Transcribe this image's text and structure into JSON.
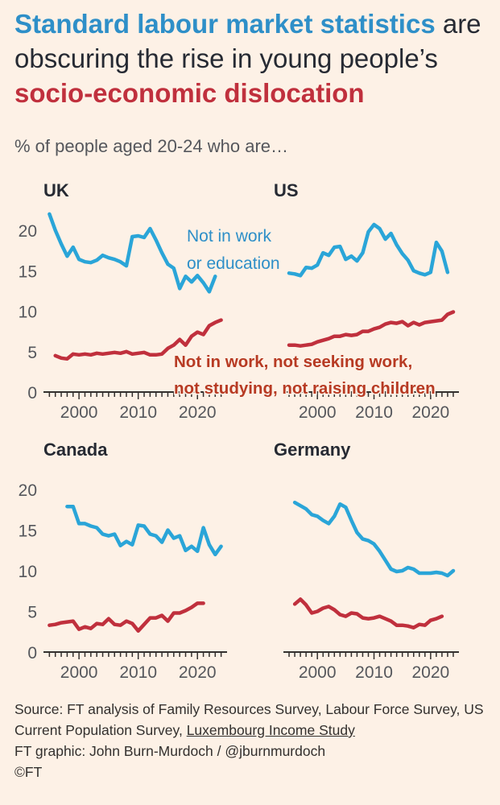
{
  "title": {
    "part1": "Standard labour market statistics",
    "part2": " are obscuring the rise in young people’s ",
    "part3": "socio-economic dislocation"
  },
  "subtitle": "% of people aged 20-24 who are…",
  "colors": {
    "blue": "#2aa5d8",
    "red": "#c0303d",
    "annotation_blue": "#2e8fc8",
    "annotation_red": "#b73a23",
    "axis": "#33302e",
    "text": "#262a33"
  },
  "chart_data": [
    {
      "type": "line",
      "title": "UK",
      "xlim": [
        1994,
        2025
      ],
      "ylim": [
        0,
        22
      ],
      "yticks": [
        "0",
        "5",
        "10",
        "15",
        "20"
      ],
      "xticks": [
        "2000",
        "2010",
        "2020"
      ],
      "series": [
        {
          "name": "Not in work or education",
          "x": [
            1995,
            1996,
            1997,
            1998,
            1999,
            2000,
            2001,
            2002,
            2003,
            2004,
            2005,
            2006,
            2007,
            2008,
            2009,
            2010,
            2011,
            2012,
            2013,
            2014,
            2015,
            2016,
            2017,
            2018,
            2019,
            2020,
            2021,
            2022,
            2023
          ],
          "values": [
            22,
            20,
            18.3,
            16.8,
            17.9,
            16.4,
            16.1,
            16,
            16.3,
            16.9,
            16.6,
            16.4,
            16.1,
            15.6,
            19.2,
            19.3,
            19.1,
            20.2,
            18.8,
            17.2,
            15.8,
            15.3,
            12.8,
            14.3,
            13.6,
            14.4,
            13.5,
            12.4,
            14.3
          ]
        },
        {
          "name": "Not in work, not seeking work, not studying, not raising children",
          "x": [
            1996,
            1997,
            1998,
            1999,
            2000,
            2001,
            2002,
            2003,
            2004,
            2005,
            2006,
            2007,
            2008,
            2009,
            2010,
            2011,
            2012,
            2013,
            2014,
            2015,
            2016,
            2017,
            2018,
            2019,
            2020,
            2021,
            2022,
            2023,
            2024
          ],
          "values": [
            4.5,
            4.2,
            4.1,
            4.7,
            4.6,
            4.7,
            4.6,
            4.8,
            4.7,
            4.8,
            4.9,
            4.8,
            5,
            4.7,
            4.8,
            4.9,
            4.6,
            4.6,
            4.7,
            5.4,
            5.8,
            6.5,
            5.8,
            6.9,
            7.4,
            7.1,
            8.2,
            8.6,
            8.9
          ]
        }
      ],
      "annotation_lines": [
        "Not in work",
        "or education"
      ]
    },
    {
      "type": "line",
      "title": "US",
      "xlim": [
        1994,
        2025
      ],
      "ylim": [
        0,
        22
      ],
      "yticks": [],
      "xticks": [
        "2000",
        "2010",
        "2020"
      ],
      "series": [
        {
          "name": "Not in work or education",
          "x": [
            1995,
            1996,
            1997,
            1998,
            1999,
            2000,
            2001,
            2002,
            2003,
            2004,
            2005,
            2006,
            2007,
            2008,
            2009,
            2010,
            2011,
            2012,
            2013,
            2014,
            2015,
            2016,
            2017,
            2018,
            2019,
            2020,
            2021,
            2022,
            2023
          ],
          "values": [
            14.7,
            14.6,
            14.4,
            15.4,
            15.3,
            15.7,
            17.2,
            16.9,
            17.9,
            18,
            16.4,
            16.8,
            16.2,
            17.2,
            19.8,
            20.7,
            20.2,
            18.9,
            19.6,
            18.2,
            17.1,
            16.3,
            15,
            14.7,
            14.5,
            14.8,
            18.5,
            17.4,
            14.8
          ]
        },
        {
          "name": "Not in work, not seeking work, not studying, not raising children",
          "x": [
            1995,
            1996,
            1997,
            1998,
            1999,
            2000,
            2001,
            2002,
            2003,
            2004,
            2005,
            2006,
            2007,
            2008,
            2009,
            2010,
            2011,
            2012,
            2013,
            2014,
            2015,
            2016,
            2017,
            2018,
            2019,
            2020,
            2021,
            2022,
            2023,
            2024
          ],
          "values": [
            5.8,
            5.8,
            5.7,
            5.8,
            5.9,
            6.2,
            6.4,
            6.6,
            6.9,
            6.9,
            7.1,
            7,
            7.1,
            7.5,
            7.5,
            7.8,
            8,
            8.4,
            8.6,
            8.5,
            8.7,
            8.2,
            8.6,
            8.3,
            8.6,
            8.7,
            8.8,
            8.9,
            9.6,
            9.9
          ]
        }
      ],
      "annotation_lines": [
        "Not in work, not seeking work,",
        "not studying, not raising children"
      ]
    },
    {
      "type": "line",
      "title": "Canada",
      "xlim": [
        1994,
        2025
      ],
      "ylim": [
        0,
        22
      ],
      "yticks": [
        "0",
        "5",
        "10",
        "15",
        "20"
      ],
      "xticks": [
        "2000",
        "2010",
        "2020"
      ],
      "series": [
        {
          "name": "Not in work or education",
          "x": [
            1998,
            1999,
            2000,
            2001,
            2002,
            2003,
            2004,
            2005,
            2006,
            2007,
            2008,
            2009,
            2010,
            2011,
            2012,
            2013,
            2014,
            2015,
            2016,
            2017,
            2018,
            2019,
            2020,
            2021,
            2022,
            2023
          ],
          "values": [
            17.9,
            17.9,
            15.8,
            15.8,
            15.5,
            15.3,
            14.5,
            14.3,
            14.5,
            13.1,
            13.6,
            13.2,
            15.6,
            15.5,
            14.5,
            14.3,
            13.5,
            15,
            14,
            14.3,
            12.5,
            13,
            12.4,
            15.3,
            13.2,
            12
          ],
          "extra_x": [
            2024
          ],
          "extra_values": [
            13
          ]
        },
        {
          "name": "Not in work, not seeking work, not studying, not raising children",
          "x": [
            1995,
            1996,
            1997,
            1998,
            1999,
            2000,
            2001,
            2002,
            2003,
            2004,
            2005,
            2006,
            2007,
            2008,
            2009,
            2010,
            2011,
            2012,
            2013,
            2014,
            2015,
            2016,
            2017,
            2018,
            2019,
            2020,
            2021
          ],
          "values": [
            3.3,
            3.4,
            3.6,
            3.7,
            3.8,
            2.8,
            3.1,
            2.9,
            3.5,
            3.4,
            4.1,
            3.4,
            3.3,
            3.8,
            3.5,
            2.6,
            3.4,
            4.2,
            4.2,
            4.5,
            3.8,
            4.8,
            4.8,
            5.1,
            5.5,
            6,
            6
          ]
        }
      ],
      "annotation_lines": []
    },
    {
      "type": "line",
      "title": "Germany",
      "xlim": [
        1994,
        2025
      ],
      "ylim": [
        0,
        22
      ],
      "yticks": [],
      "xticks": [
        "2000",
        "2010",
        "2020"
      ],
      "series": [
        {
          "name": "Not in work or education",
          "x": [
            1996,
            1997,
            1998,
            1999,
            2000,
            2001,
            2002,
            2003,
            2004,
            2005,
            2006,
            2007,
            2008,
            2009,
            2010,
            2011,
            2012,
            2013,
            2014,
            2015,
            2016,
            2017,
            2018,
            2019,
            2020,
            2021,
            2022,
            2023,
            2024
          ],
          "values": [
            18.4,
            18,
            17.6,
            16.9,
            16.7,
            16.2,
            15.8,
            16.7,
            18.2,
            17.8,
            16.2,
            14.7,
            13.9,
            13.7,
            13.3,
            12.4,
            11.3,
            10.2,
            9.9,
            10,
            10.4,
            10.2,
            9.7,
            9.7,
            9.7,
            9.8,
            9.7,
            9.4,
            10
          ]
        },
        {
          "name": "Not in work, not seeking work, not studying, not raising children",
          "x": [
            1996,
            1997,
            1998,
            1999,
            2000,
            2001,
            2002,
            2003,
            2004,
            2005,
            2006,
            2007,
            2008,
            2009,
            2010,
            2011,
            2012,
            2013,
            2014,
            2015,
            2016,
            2017,
            2018,
            2019,
            2020,
            2021,
            2022
          ],
          "values": [
            5.9,
            6.5,
            5.8,
            4.8,
            5,
            5.4,
            5.6,
            5.2,
            4.6,
            4.4,
            4.8,
            4.7,
            4.2,
            4.1,
            4.2,
            4.4,
            4.1,
            3.8,
            3.3,
            3.3,
            3.2,
            3,
            3.4,
            3.3,
            3.9,
            4.1,
            4.4
          ]
        }
      ],
      "annotation_lines": []
    }
  ],
  "source": {
    "text": "Source: FT analysis of Family Resources Survey, Labour Force Survey, US Current Population Survey, ",
    "link": "Luxembourg Income Study",
    "credit": "FT graphic: John Burn-Murdoch / @jburnmurdoch",
    "copyright": "©FT"
  }
}
